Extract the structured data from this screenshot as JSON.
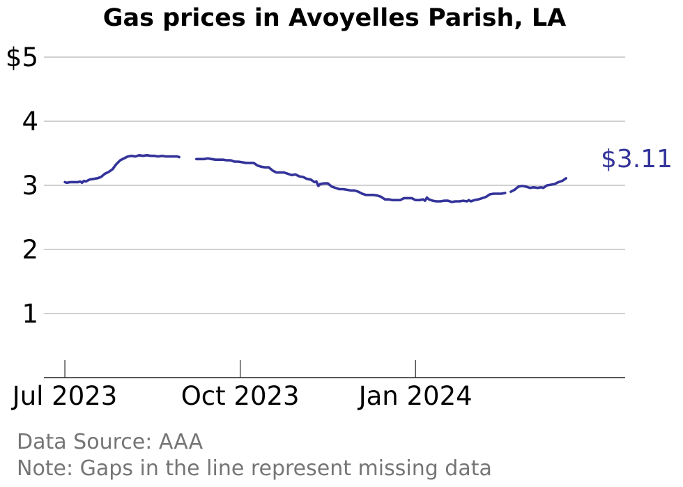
{
  "chart_data": {
    "type": "line",
    "title": "Gas prices in Avoyelles Parish, LA",
    "xlabel": "",
    "ylabel": "",
    "ylim": [
      0,
      5
    ],
    "xlim": [
      "2023-06-20",
      "2024-04-20"
    ],
    "yticks": [
      {
        "value": 1,
        "label": "1"
      },
      {
        "value": 2,
        "label": "2"
      },
      {
        "value": 3,
        "label": "3"
      },
      {
        "value": 4,
        "label": "4"
      },
      {
        "value": 5,
        "label": "$5"
      }
    ],
    "xticks": [
      {
        "date": "2023-07-01",
        "label": "Jul 2023"
      },
      {
        "date": "2023-10-01",
        "label": "Oct 2023"
      },
      {
        "date": "2024-01-01",
        "label": "Jan 2024"
      }
    ],
    "grid": true,
    "legend": "none",
    "end_label": "$3.11",
    "series": [
      {
        "color": "#33339a",
        "segments": [
          [
            [
              "2023-07-01",
              3.05
            ],
            [
              "2023-07-02",
              3.04
            ],
            [
              "2023-07-04",
              3.05
            ],
            [
              "2023-07-06",
              3.05
            ],
            [
              "2023-07-08",
              3.05
            ],
            [
              "2023-07-09",
              3.06
            ],
            [
              "2023-07-10",
              3.04
            ],
            [
              "2023-07-11",
              3.07
            ],
            [
              "2023-07-12",
              3.06
            ],
            [
              "2023-07-14",
              3.09
            ],
            [
              "2023-07-16",
              3.1
            ],
            [
              "2023-07-18",
              3.11
            ],
            [
              "2023-07-20",
              3.13
            ],
            [
              "2023-07-22",
              3.18
            ],
            [
              "2023-07-24",
              3.21
            ],
            [
              "2023-07-26",
              3.25
            ],
            [
              "2023-07-28",
              3.33
            ],
            [
              "2023-07-30",
              3.39
            ],
            [
              "2023-08-01",
              3.42
            ],
            [
              "2023-08-03",
              3.45
            ],
            [
              "2023-08-05",
              3.46
            ],
            [
              "2023-08-07",
              3.45
            ],
            [
              "2023-08-09",
              3.47
            ],
            [
              "2023-08-11",
              3.46
            ],
            [
              "2023-08-13",
              3.47
            ],
            [
              "2023-08-15",
              3.46
            ],
            [
              "2023-08-17",
              3.46
            ],
            [
              "2023-08-19",
              3.45
            ],
            [
              "2023-08-21",
              3.46
            ],
            [
              "2023-08-23",
              3.45
            ],
            [
              "2023-08-25",
              3.45
            ],
            [
              "2023-08-27",
              3.45
            ],
            [
              "2023-08-29",
              3.45
            ],
            [
              "2023-08-30",
              3.44
            ]
          ],
          [
            [
              "2023-09-08",
              3.41
            ],
            [
              "2023-09-10",
              3.41
            ],
            [
              "2023-09-12",
              3.41
            ],
            [
              "2023-09-14",
              3.42
            ],
            [
              "2023-09-16",
              3.41
            ],
            [
              "2023-09-18",
              3.4
            ],
            [
              "2023-09-20",
              3.4
            ],
            [
              "2023-09-22",
              3.4
            ],
            [
              "2023-09-24",
              3.39
            ],
            [
              "2023-09-26",
              3.39
            ],
            [
              "2023-09-28",
              3.37
            ],
            [
              "2023-09-30",
              3.37
            ],
            [
              "2023-10-02",
              3.36
            ],
            [
              "2023-10-04",
              3.35
            ],
            [
              "2023-10-06",
              3.35
            ],
            [
              "2023-10-08",
              3.35
            ],
            [
              "2023-10-10",
              3.31
            ],
            [
              "2023-10-12",
              3.29
            ],
            [
              "2023-10-14",
              3.28
            ],
            [
              "2023-10-16",
              3.28
            ],
            [
              "2023-10-18",
              3.23
            ],
            [
              "2023-10-20",
              3.2
            ],
            [
              "2023-10-22",
              3.2
            ],
            [
              "2023-10-24",
              3.2
            ],
            [
              "2023-10-26",
              3.18
            ],
            [
              "2023-10-28",
              3.16
            ],
            [
              "2023-10-30",
              3.17
            ],
            [
              "2023-11-01",
              3.14
            ],
            [
              "2023-11-03",
              3.13
            ],
            [
              "2023-11-05",
              3.1
            ],
            [
              "2023-11-07",
              3.09
            ],
            [
              "2023-11-09",
              3.05
            ],
            [
              "2023-11-10",
              3.06
            ],
            [
              "2023-11-11",
              2.99
            ],
            [
              "2023-11-12",
              3.02
            ],
            [
              "2023-11-14",
              3.03
            ],
            [
              "2023-11-16",
              3.03
            ],
            [
              "2023-11-18",
              2.98
            ],
            [
              "2023-11-20",
              2.96
            ],
            [
              "2023-11-22",
              2.94
            ],
            [
              "2023-11-24",
              2.94
            ],
            [
              "2023-11-26",
              2.93
            ],
            [
              "2023-11-28",
              2.92
            ],
            [
              "2023-11-30",
              2.92
            ],
            [
              "2023-12-02",
              2.9
            ],
            [
              "2023-12-04",
              2.87
            ],
            [
              "2023-12-06",
              2.85
            ],
            [
              "2023-12-08",
              2.85
            ],
            [
              "2023-12-10",
              2.85
            ],
            [
              "2023-12-12",
              2.84
            ],
            [
              "2023-12-14",
              2.82
            ],
            [
              "2023-12-16",
              2.78
            ],
            [
              "2023-12-18",
              2.78
            ],
            [
              "2023-12-20",
              2.77
            ],
            [
              "2023-12-22",
              2.77
            ],
            [
              "2023-12-24",
              2.77
            ],
            [
              "2023-12-26",
              2.8
            ],
            [
              "2023-12-28",
              2.8
            ],
            [
              "2023-12-30",
              2.8
            ],
            [
              "2024-01-01",
              2.77
            ],
            [
              "2024-01-03",
              2.77
            ],
            [
              "2024-01-05",
              2.78
            ],
            [
              "2024-01-06",
              2.76
            ],
            [
              "2024-01-07",
              2.81
            ],
            [
              "2024-01-08",
              2.78
            ],
            [
              "2024-01-10",
              2.76
            ],
            [
              "2024-01-12",
              2.75
            ],
            [
              "2024-01-14",
              2.75
            ],
            [
              "2024-01-16",
              2.76
            ],
            [
              "2024-01-18",
              2.76
            ],
            [
              "2024-01-20",
              2.74
            ],
            [
              "2024-01-22",
              2.75
            ],
            [
              "2024-01-24",
              2.75
            ],
            [
              "2024-01-26",
              2.76
            ],
            [
              "2024-01-28",
              2.75
            ],
            [
              "2024-01-29",
              2.77
            ],
            [
              "2024-01-30",
              2.75
            ],
            [
              "2024-02-01",
              2.77
            ],
            [
              "2024-02-03",
              2.78
            ],
            [
              "2024-02-05",
              2.8
            ],
            [
              "2024-02-07",
              2.82
            ],
            [
              "2024-02-09",
              2.86
            ],
            [
              "2024-02-11",
              2.87
            ],
            [
              "2024-02-13",
              2.87
            ],
            [
              "2024-02-15",
              2.87
            ],
            [
              "2024-02-17",
              2.88
            ]
          ],
          [
            [
              "2024-02-20",
              2.9
            ],
            [
              "2024-02-22",
              2.93
            ],
            [
              "2024-02-24",
              2.98
            ],
            [
              "2024-02-26",
              2.99
            ],
            [
              "2024-02-28",
              2.98
            ],
            [
              "2024-03-01",
              2.96
            ],
            [
              "2024-03-03",
              2.97
            ],
            [
              "2024-03-05",
              2.96
            ],
            [
              "2024-03-07",
              2.97
            ],
            [
              "2024-03-08",
              2.96
            ],
            [
              "2024-03-10",
              3.0
            ],
            [
              "2024-03-12",
              3.01
            ],
            [
              "2024-03-14",
              3.02
            ],
            [
              "2024-03-16",
              3.05
            ],
            [
              "2024-03-18",
              3.07
            ],
            [
              "2024-03-20",
              3.11
            ]
          ]
        ]
      }
    ]
  },
  "footer": {
    "source": "Data Source: AAA",
    "note": "Note: Gaps in the line represent missing data"
  }
}
